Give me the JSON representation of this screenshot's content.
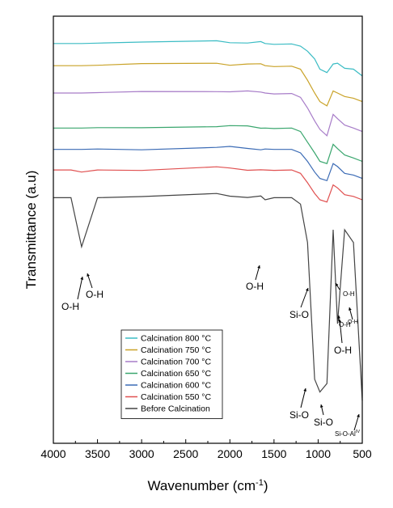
{
  "chart_data": {
    "type": "line",
    "xlabel": "Wavenumber (cm",
    "xlabel_sup": "-1",
    "xlabel_tail": ")",
    "ylabel": "Transmittance (a.u)",
    "xlim": [
      4000,
      500
    ],
    "xticks": [
      "4000",
      "3500",
      "3000",
      "2500",
      "2000",
      "1500",
      "1000",
      "500"
    ],
    "xtick_values": [
      4000,
      3500,
      3000,
      2500,
      2000,
      1500,
      1000,
      500
    ],
    "grid": false,
    "legend_position": "bottom-center",
    "series": [
      {
        "name": "Calcination 800 °C",
        "color": "#3bbcc4",
        "values": [
          0.936,
          0.936,
          0.936,
          0.937,
          0.938,
          0.94,
          0.94,
          0.939,
          0.938,
          0.936,
          0.934,
          0.935,
          0.93,
          0.918,
          0.9,
          0.876,
          0.868,
          0.888,
          0.89,
          0.878,
          0.876,
          0.86
        ]
      },
      {
        "name": "Calcination 750 °C",
        "color": "#c9a227",
        "values": [
          0.884,
          0.884,
          0.884,
          0.885,
          0.886,
          0.89,
          0.888,
          0.887,
          0.886,
          0.884,
          0.882,
          0.883,
          0.876,
          0.85,
          0.82,
          0.8,
          0.79,
          0.825,
          0.82,
          0.812,
          0.808,
          0.8
        ]
      },
      {
        "name": "Calcination 700 °C",
        "color": "#a77cc8",
        "values": [
          0.82,
          0.82,
          0.82,
          0.821,
          0.822,
          0.826,
          0.824,
          0.822,
          0.822,
          0.82,
          0.818,
          0.819,
          0.81,
          0.785,
          0.755,
          0.735,
          0.72,
          0.77,
          0.76,
          0.745,
          0.738,
          0.73
        ]
      },
      {
        "name": "Calcination 650 °C",
        "color": "#3aa66e",
        "values": [
          0.738,
          0.738,
          0.738,
          0.739,
          0.74,
          0.744,
          0.742,
          0.741,
          0.74,
          0.738,
          0.737,
          0.738,
          0.73,
          0.705,
          0.68,
          0.66,
          0.655,
          0.7,
          0.69,
          0.675,
          0.668,
          0.66
        ]
      },
      {
        "name": "Calcination 600 °C",
        "color": "#3b6bb5",
        "values": [
          0.688,
          0.688,
          0.688,
          0.689,
          0.69,
          0.693,
          0.692,
          0.691,
          0.69,
          0.689,
          0.688,
          0.688,
          0.68,
          0.66,
          0.635,
          0.62,
          0.615,
          0.655,
          0.648,
          0.632,
          0.628,
          0.62
        ]
      },
      {
        "name": "Calcination 550 °C",
        "color": "#e05050",
        "values": [
          0.64,
          0.64,
          0.635,
          0.64,
          0.641,
          0.645,
          0.643,
          0.642,
          0.641,
          0.64,
          0.639,
          0.64,
          0.632,
          0.61,
          0.585,
          0.57,
          0.565,
          0.605,
          0.598,
          0.582,
          0.578,
          0.57
        ]
      },
      {
        "name": "Before Calcination",
        "color": "#444444",
        "values": [
          0.575,
          0.575,
          0.46,
          0.575,
          0.577,
          0.582,
          0.58,
          0.578,
          0.577,
          0.57,
          0.575,
          0.575,
          0.56,
          0.47,
          0.15,
          0.12,
          0.14,
          0.5,
          0.28,
          0.5,
          0.47,
          0.1
        ]
      }
    ],
    "x": [
      4000,
      3800,
      3680,
      3500,
      3000,
      2150,
      2000,
      1800,
      1650,
      1600,
      1500,
      1300,
      1200,
      1120,
      1040,
      980,
      900,
      830,
      780,
      700,
      600,
      500
    ],
    "annotations": [
      {
        "text": "O-H",
        "sup": ""
      },
      {
        "text": "O-H",
        "sup": ""
      },
      {
        "text": "O-H",
        "sup": ""
      },
      {
        "text": "Si-O",
        "sup": ""
      },
      {
        "text": "O-H",
        "sup": ""
      },
      {
        "text": "O-H",
        "sup": ""
      },
      {
        "text": "O-H",
        "sup": ""
      },
      {
        "text": "O-H",
        "sup": ""
      },
      {
        "text": "Si-O",
        "sup": ""
      },
      {
        "text": "Si-O",
        "sup": ""
      },
      {
        "text": "Si-O-Al",
        "sup": "IV"
      }
    ]
  }
}
